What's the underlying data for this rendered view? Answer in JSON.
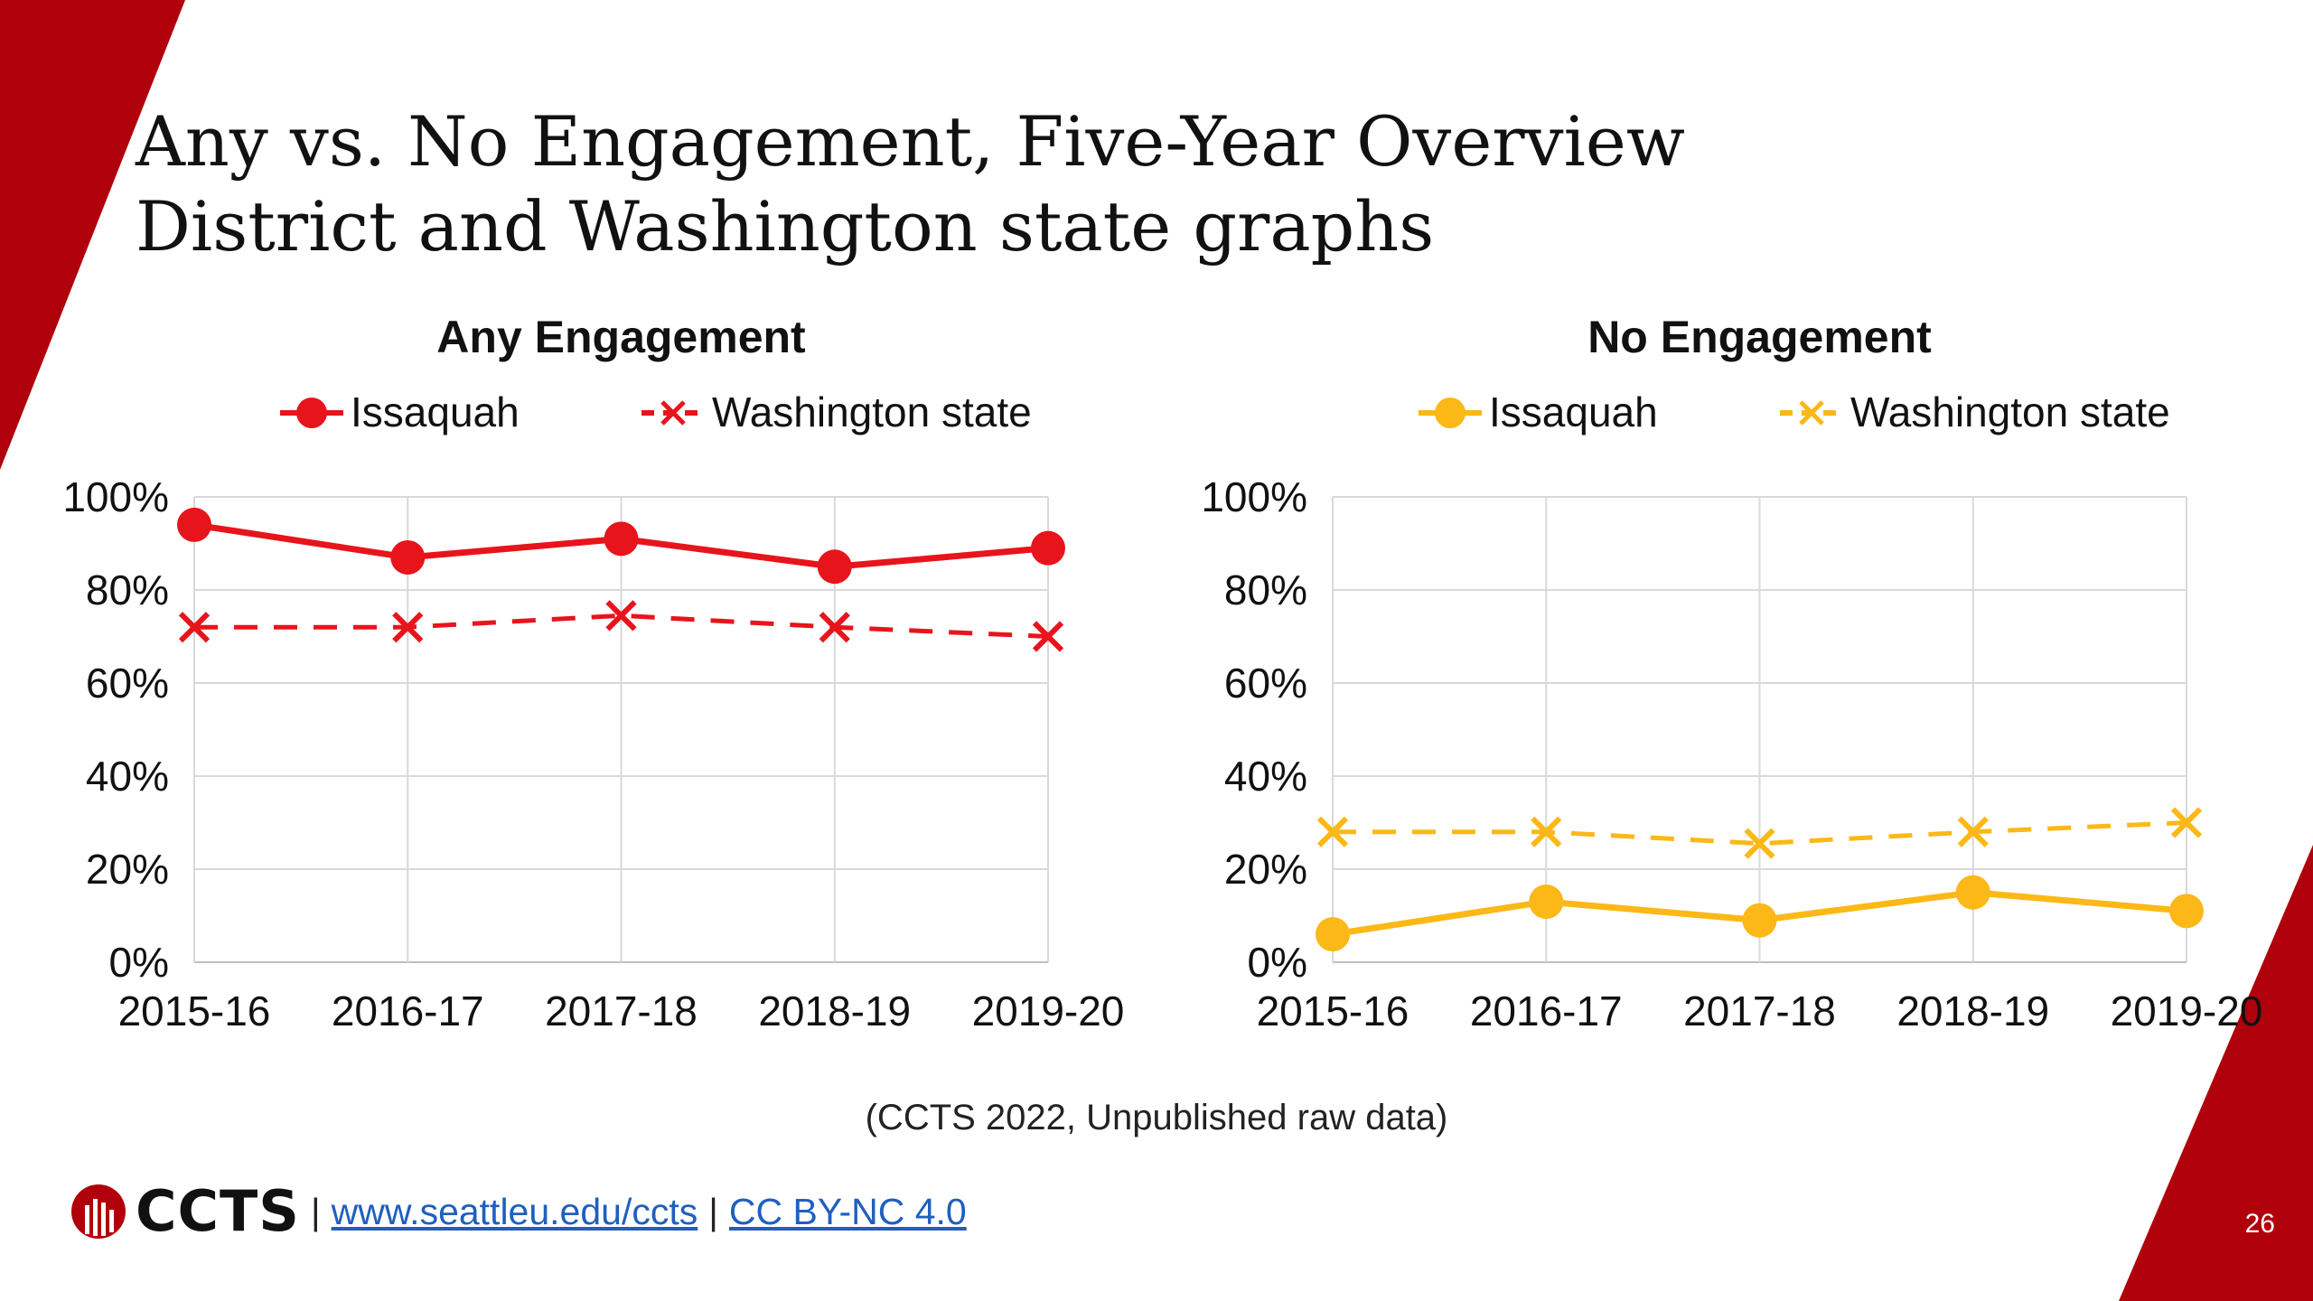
{
  "slide": {
    "title_line1": "Any vs. No Engagement, Five-Year Overview",
    "title_line2": "District and Washington state graphs",
    "source": "(CCTS 2022, Unpublished raw data)",
    "page_number": "26",
    "accent_color": "#b0000b"
  },
  "footer": {
    "logo_text": "CCTS",
    "separator": "|",
    "link1": "www.seattleu.edu/ccts",
    "link2": "CC BY-NC 4.0"
  },
  "chart_data": [
    {
      "type": "line",
      "title": "Any Engagement",
      "categories": [
        "2015-16",
        "2016-17",
        "2017-18",
        "2018-19",
        "2019-20"
      ],
      "series": [
        {
          "name": "Issaquah",
          "values": [
            94,
            87,
            91,
            85,
            89
          ],
          "color": "#e8141c",
          "marker": "circle",
          "dash": false
        },
        {
          "name": "Washington state",
          "values": [
            72,
            72,
            74.5,
            72,
            70
          ],
          "color": "#e8141c",
          "marker": "x",
          "dash": true
        }
      ],
      "ylim": [
        0,
        100
      ],
      "yticks": [
        "0%",
        "20%",
        "40%",
        "60%",
        "80%",
        "100%"
      ],
      "grid": true,
      "legend": "top"
    },
    {
      "type": "line",
      "title": "No Engagement",
      "categories": [
        "2015-16",
        "2016-17",
        "2017-18",
        "2018-19",
        "2019-20"
      ],
      "series": [
        {
          "name": "Issaquah",
          "values": [
            6,
            13,
            9,
            15,
            11
          ],
          "color": "#fbb817",
          "marker": "circle",
          "dash": false
        },
        {
          "name": "Washington state",
          "values": [
            28,
            28,
            25.5,
            28,
            30
          ],
          "color": "#fbb817",
          "marker": "x",
          "dash": true
        }
      ],
      "ylim": [
        0,
        100
      ],
      "yticks": [
        "0%",
        "20%",
        "40%",
        "60%",
        "80%",
        "100%"
      ],
      "grid": true,
      "legend": "top"
    }
  ]
}
